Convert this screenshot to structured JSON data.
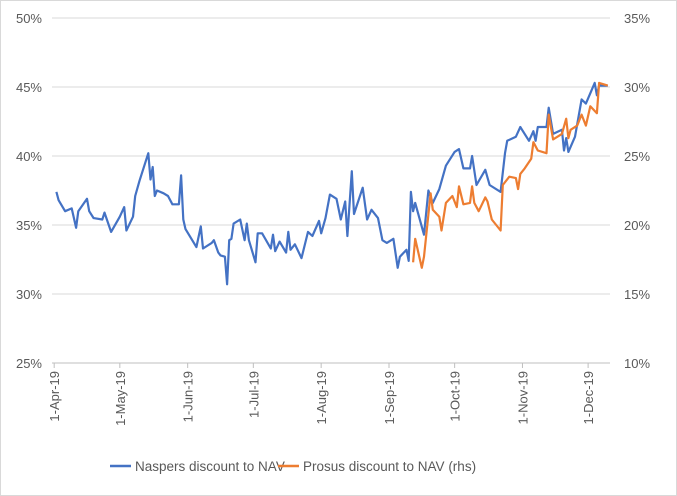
{
  "chart_data": {
    "type": "line",
    "title": "",
    "xlim": [
      "2019-03-31",
      "2019-12-11"
    ],
    "x_tick_labels": [
      "1-Apr-19",
      "1-May-19",
      "1-Jun-19",
      "1-Jul-19",
      "1-Aug-19",
      "1-Sep-19",
      "1-Oct-19",
      "1-Nov-19",
      "1-Dec-19"
    ],
    "x_tick_dates": [
      "2019-04-01",
      "2019-05-01",
      "2019-06-01",
      "2019-07-01",
      "2019-08-01",
      "2019-09-01",
      "2019-10-01",
      "2019-11-01",
      "2019-12-01"
    ],
    "y_left": {
      "lim": [
        25,
        50
      ],
      "ticks": [
        25,
        30,
        35,
        40,
        45,
        50
      ],
      "tick_labels": [
        "25%",
        "30%",
        "35%",
        "40%",
        "45%",
        "50%"
      ]
    },
    "y_right": {
      "lim": [
        10,
        35
      ],
      "ticks": [
        10,
        15,
        20,
        25,
        30,
        35
      ],
      "tick_labels": [
        "10%",
        "15%",
        "20%",
        "25%",
        "30%",
        "35%"
      ]
    },
    "grid": true,
    "legend_position": "bottom",
    "series": [
      {
        "name": "Naspers discount to NAV",
        "axis": "left",
        "color": "#4472c4",
        "points": [
          [
            "2019-04-02",
            37.4
          ],
          [
            "2019-04-03",
            36.8
          ],
          [
            "2019-04-06",
            36.0
          ],
          [
            "2019-04-09",
            36.2
          ],
          [
            "2019-04-11",
            34.8
          ],
          [
            "2019-04-12",
            36.0
          ],
          [
            "2019-04-16",
            36.9
          ],
          [
            "2019-04-17",
            36.0
          ],
          [
            "2019-04-19",
            35.5
          ],
          [
            "2019-04-23",
            35.4
          ],
          [
            "2019-04-24",
            35.9
          ],
          [
            "2019-04-27",
            34.5
          ],
          [
            "2019-05-01",
            35.6
          ],
          [
            "2019-05-03",
            36.3
          ],
          [
            "2019-05-04",
            34.6
          ],
          [
            "2019-05-07",
            35.6
          ],
          [
            "2019-05-08",
            37.1
          ],
          [
            "2019-05-10",
            38.2
          ],
          [
            "2019-05-14",
            40.2
          ],
          [
            "2019-05-15",
            38.3
          ],
          [
            "2019-05-16",
            39.2
          ],
          [
            "2019-05-17",
            37.1
          ],
          [
            "2019-05-18",
            37.5
          ],
          [
            "2019-05-21",
            37.3
          ],
          [
            "2019-05-23",
            37.1
          ],
          [
            "2019-05-25",
            36.5
          ],
          [
            "2019-05-28",
            36.5
          ],
          [
            "2019-05-29",
            38.6
          ],
          [
            "2019-05-30",
            35.4
          ],
          [
            "2019-05-31",
            34.7
          ],
          [
            "2019-06-05",
            33.4
          ],
          [
            "2019-06-07",
            34.9
          ],
          [
            "2019-06-08",
            33.3
          ],
          [
            "2019-06-12",
            33.7
          ],
          [
            "2019-06-13",
            33.9
          ],
          [
            "2019-06-15",
            33.0
          ],
          [
            "2019-06-16",
            32.8
          ],
          [
            "2019-06-18",
            32.7
          ],
          [
            "2019-06-19",
            30.7
          ],
          [
            "2019-06-20",
            33.9
          ],
          [
            "2019-06-21",
            34.0
          ],
          [
            "2019-06-22",
            35.1
          ],
          [
            "2019-06-25",
            35.4
          ],
          [
            "2019-06-27",
            33.9
          ],
          [
            "2019-06-28",
            35.1
          ],
          [
            "2019-06-29",
            33.9
          ],
          [
            "2019-07-02",
            32.3
          ],
          [
            "2019-07-03",
            34.4
          ],
          [
            "2019-07-05",
            34.4
          ],
          [
            "2019-07-09",
            33.3
          ],
          [
            "2019-07-10",
            34.3
          ],
          [
            "2019-07-11",
            33.1
          ],
          [
            "2019-07-13",
            33.8
          ],
          [
            "2019-07-16",
            33.0
          ],
          [
            "2019-07-17",
            34.5
          ],
          [
            "2019-07-18",
            33.2
          ],
          [
            "2019-07-20",
            33.6
          ],
          [
            "2019-07-23",
            32.6
          ],
          [
            "2019-07-26",
            34.5
          ],
          [
            "2019-07-28",
            34.2
          ],
          [
            "2019-07-31",
            35.3
          ],
          [
            "2019-08-01",
            34.4
          ],
          [
            "2019-08-03",
            35.5
          ],
          [
            "2019-08-05",
            37.2
          ],
          [
            "2019-08-08",
            36.9
          ],
          [
            "2019-08-10",
            35.4
          ],
          [
            "2019-08-12",
            36.7
          ],
          [
            "2019-08-13",
            34.2
          ],
          [
            "2019-08-15",
            38.9
          ],
          [
            "2019-08-16",
            35.8
          ],
          [
            "2019-08-20",
            37.7
          ],
          [
            "2019-08-22",
            35.4
          ],
          [
            "2019-08-24",
            36.1
          ],
          [
            "2019-08-27",
            35.5
          ],
          [
            "2019-08-29",
            33.9
          ],
          [
            "2019-08-31",
            33.7
          ],
          [
            "2019-09-03",
            34.0
          ],
          [
            "2019-09-05",
            31.9
          ],
          [
            "2019-09-06",
            32.7
          ],
          [
            "2019-09-09",
            33.2
          ],
          [
            "2019-09-10",
            32.4
          ],
          [
            "2019-09-11",
            37.4
          ],
          [
            "2019-09-12",
            36.0
          ],
          [
            "2019-09-13",
            36.6
          ],
          [
            "2019-09-17",
            34.3
          ],
          [
            "2019-09-19",
            37.5
          ],
          [
            "2019-09-21",
            36.6
          ],
          [
            "2019-09-24",
            37.6
          ],
          [
            "2019-09-27",
            39.3
          ],
          [
            "2019-10-01",
            40.3
          ],
          [
            "2019-10-03",
            40.5
          ],
          [
            "2019-10-05",
            39.1
          ],
          [
            "2019-10-08",
            39.1
          ],
          [
            "2019-10-09",
            40.0
          ],
          [
            "2019-10-11",
            37.9
          ],
          [
            "2019-10-15",
            39.0
          ],
          [
            "2019-10-17",
            37.9
          ],
          [
            "2019-10-22",
            37.4
          ],
          [
            "2019-10-24",
            40.2
          ],
          [
            "2019-10-25",
            41.1
          ],
          [
            "2019-10-29",
            41.4
          ],
          [
            "2019-10-31",
            42.1
          ],
          [
            "2019-11-04",
            41.1
          ],
          [
            "2019-11-06",
            41.8
          ],
          [
            "2019-11-07",
            41.1
          ],
          [
            "2019-11-08",
            42.1
          ],
          [
            "2019-11-12",
            42.1
          ],
          [
            "2019-11-13",
            43.5
          ],
          [
            "2019-11-15",
            41.6
          ],
          [
            "2019-11-19",
            41.9
          ],
          [
            "2019-11-20",
            40.4
          ],
          [
            "2019-11-21",
            41.3
          ],
          [
            "2019-11-22",
            40.3
          ],
          [
            "2019-11-25",
            41.4
          ],
          [
            "2019-11-28",
            44.1
          ],
          [
            "2019-11-30",
            43.8
          ],
          [
            "2019-12-04",
            45.3
          ],
          [
            "2019-12-05",
            44.4
          ],
          [
            "2019-12-06",
            45.1
          ],
          [
            "2019-12-10",
            45.1
          ]
        ]
      },
      {
        "name": "Prosus discount to NAV (rhs)",
        "axis": "right",
        "color": "#ed7d31",
        "points": [
          [
            "2019-09-12",
            17.3
          ],
          [
            "2019-09-13",
            19.0
          ],
          [
            "2019-09-16",
            16.9
          ],
          [
            "2019-09-17",
            17.7
          ],
          [
            "2019-09-20",
            22.3
          ],
          [
            "2019-09-21",
            21.1
          ],
          [
            "2019-09-24",
            20.6
          ],
          [
            "2019-09-25",
            19.6
          ],
          [
            "2019-09-27",
            21.6
          ],
          [
            "2019-09-30",
            22.1
          ],
          [
            "2019-10-02",
            21.3
          ],
          [
            "2019-10-03",
            22.8
          ],
          [
            "2019-10-05",
            21.5
          ],
          [
            "2019-10-08",
            21.6
          ],
          [
            "2019-10-09",
            22.8
          ],
          [
            "2019-10-10",
            21.6
          ],
          [
            "2019-10-12",
            21.0
          ],
          [
            "2019-10-15",
            22.0
          ],
          [
            "2019-10-16",
            21.7
          ],
          [
            "2019-10-18",
            20.4
          ],
          [
            "2019-10-22",
            19.6
          ],
          [
            "2019-10-23",
            22.9
          ],
          [
            "2019-10-26",
            23.5
          ],
          [
            "2019-10-29",
            23.4
          ],
          [
            "2019-10-30",
            22.6
          ],
          [
            "2019-10-31",
            23.7
          ],
          [
            "2019-11-02",
            24.1
          ],
          [
            "2019-11-05",
            24.8
          ],
          [
            "2019-11-06",
            26.0
          ],
          [
            "2019-11-08",
            25.4
          ],
          [
            "2019-11-12",
            25.2
          ],
          [
            "2019-11-13",
            28.0
          ],
          [
            "2019-11-15",
            26.2
          ],
          [
            "2019-11-19",
            26.6
          ],
          [
            "2019-11-21",
            27.7
          ],
          [
            "2019-11-22",
            26.3
          ],
          [
            "2019-11-23",
            26.9
          ],
          [
            "2019-11-26",
            27.2
          ],
          [
            "2019-11-28",
            28.0
          ],
          [
            "2019-11-30",
            27.2
          ],
          [
            "2019-12-02",
            28.6
          ],
          [
            "2019-12-05",
            28.1
          ],
          [
            "2019-12-06",
            30.3
          ],
          [
            "2019-12-10",
            30.1
          ]
        ]
      }
    ]
  }
}
